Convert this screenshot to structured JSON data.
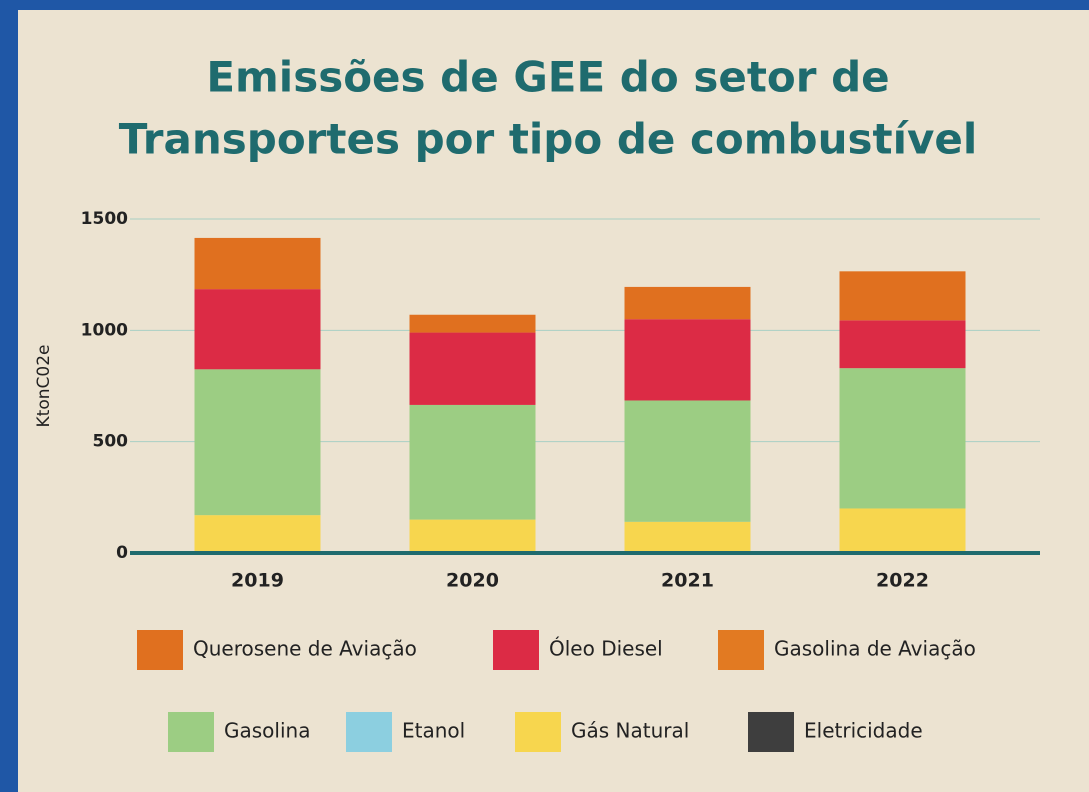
{
  "chart_data": {
    "type": "stacked_bar",
    "title": [
      "Emissões de GEE do setor de",
      "Transportes por tipo de combustível"
    ],
    "ylabel": "KtonC02e",
    "categories": [
      "2019",
      "2020",
      "2021",
      "2022"
    ],
    "series": [
      {
        "name": "Querosene de Aviação",
        "color": "#e0701f",
        "values": [
          230,
          80,
          145,
          220
        ]
      },
      {
        "name": "Óleo Diesel",
        "color": "#dc2b45",
        "values": [
          360,
          325,
          365,
          215
        ]
      },
      {
        "name": "Gasolina de Aviação",
        "color": "#e27a22",
        "values": [
          0,
          0,
          0,
          0
        ]
      },
      {
        "name": "Gasolina",
        "color": "#9ccd83",
        "values": [
          655,
          515,
          545,
          630
        ]
      },
      {
        "name": "Etanol",
        "color": "#8ccfe0",
        "values": [
          0,
          0,
          0,
          0
        ]
      },
      {
        "name": "Gás Natural",
        "color": "#f7d64e",
        "values": [
          170,
          150,
          140,
          200
        ]
      },
      {
        "name": "Eletricidade",
        "color": "#3e3e3e",
        "values": [
          0,
          0,
          0,
          0
        ]
      }
    ],
    "ylim": [
      0,
      1500
    ],
    "yticks": [
      0,
      500,
      1000,
      1500
    ],
    "grid": true
  }
}
